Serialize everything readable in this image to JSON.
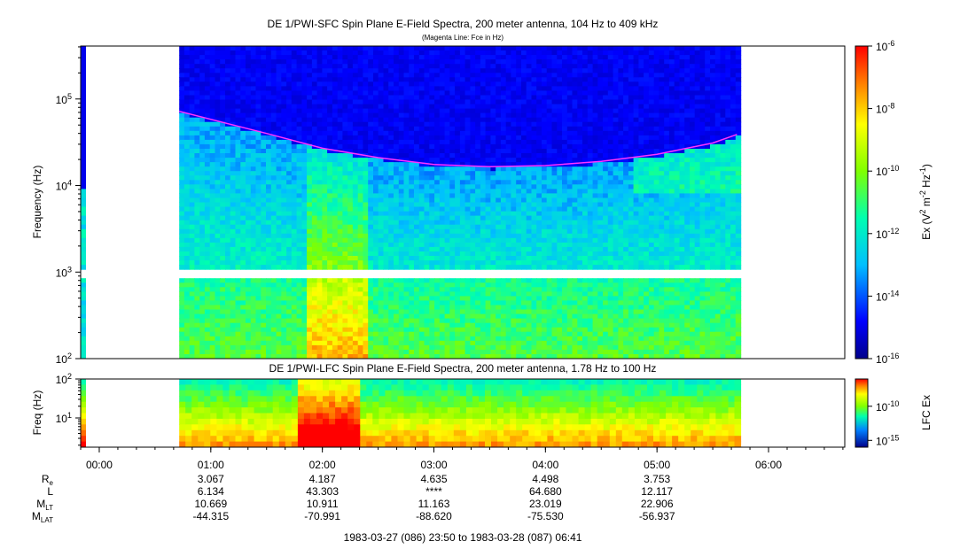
{
  "chart_data": [
    {
      "type": "heatmap",
      "title": "DE 1/PWI-SFC  Spin Plane E-Field Spectra, 200 meter antenna, 104 Hz to 409 kHz",
      "subtitle": "(Magenta Line: Fce in Hz)",
      "ylabel": "Frequency (Hz)",
      "y_scale": "log",
      "ylim": [
        100,
        409000
      ],
      "y_ticks": [
        {
          "value": 100,
          "base": "10",
          "exp": "2"
        },
        {
          "value": 1000,
          "base": "10",
          "exp": "3"
        },
        {
          "value": 10000,
          "base": "10",
          "exp": "4"
        },
        {
          "value": 100000,
          "base": "10",
          "exp": "5"
        }
      ],
      "colorbar": {
        "label_parts": [
          "Ex (V",
          "2",
          " m",
          "-2",
          " Hz",
          "-1",
          ")"
        ],
        "scale": "log",
        "range": [
          1e-16,
          1e-06
        ],
        "ticks": [
          {
            "value": 1e-06,
            "base": "10",
            "exp": "-6"
          },
          {
            "value": 1e-08,
            "base": "10",
            "exp": "-8"
          },
          {
            "value": 1e-10,
            "base": "10",
            "exp": "-10"
          },
          {
            "value": 1e-12,
            "base": "10",
            "exp": "-12"
          },
          {
            "value": 1e-14,
            "base": "10",
            "exp": "-14"
          },
          {
            "value": 1e-16,
            "base": "10",
            "exp": "-16"
          }
        ]
      },
      "data_time_range": [
        "00:43",
        "05:45"
      ],
      "fce_line": {
        "color": "#ff33ff",
        "times": [
          "00:43",
          "01:30",
          "02:00",
          "02:30",
          "03:00",
          "03:30",
          "04:00",
          "04:30",
          "05:00",
          "05:30",
          "05:43"
        ],
        "values_hz": [
          72000,
          40000,
          27000,
          21000,
          17500,
          16500,
          17000,
          19000,
          23000,
          31000,
          39000
        ]
      }
    },
    {
      "type": "heatmap",
      "title": "DE 1/PWI-LFC  Spin Plane E-Field Spectra, 200 meter antenna, 1.78 Hz to 100 Hz",
      "ylabel": "Freq (Hz)",
      "y_scale": "log",
      "ylim": [
        1.78,
        100
      ],
      "y_ticks": [
        {
          "value": 10,
          "base": "10",
          "exp": "1"
        },
        {
          "value": 100,
          "base": "10",
          "exp": "2"
        }
      ],
      "colorbar": {
        "label": "LFC Ex",
        "scale": "log",
        "range": [
          1e-16,
          1e-06
        ],
        "ticks": [
          {
            "value": 1e-10,
            "base": "10",
            "exp": "-10"
          },
          {
            "value": 1e-15,
            "base": "10",
            "exp": "-15"
          }
        ]
      },
      "data_time_range": [
        "00:43",
        "05:45"
      ]
    }
  ],
  "time_axis": {
    "start": "23:50",
    "end": "06:41",
    "ticks": [
      "00:00",
      "01:00",
      "02:00",
      "03:00",
      "04:00",
      "05:00",
      "06:00"
    ]
  },
  "ephemeris": {
    "labels": [
      {
        "main": "R",
        "sub": "e"
      },
      {
        "main": "L",
        "sub": ""
      },
      {
        "main": "M",
        "sub": "LT"
      },
      {
        "main": "M",
        "sub": "LAT"
      }
    ],
    "columns": [
      {
        "time": "01:00",
        "values": [
          "3.067",
          "6.134",
          "10.669",
          "-44.315"
        ]
      },
      {
        "time": "02:00",
        "values": [
          "4.187",
          "43.303",
          "10.911",
          "-70.991"
        ]
      },
      {
        "time": "03:00",
        "values": [
          "4.635",
          "****",
          "11.163",
          "-88.620"
        ]
      },
      {
        "time": "04:00",
        "values": [
          "4.498",
          "64.680",
          "23.019",
          "-75.530"
        ]
      },
      {
        "time": "05:00",
        "values": [
          "3.753",
          "12.117",
          "22.906",
          "-56.937"
        ]
      }
    ]
  },
  "footer": "1983-03-27 (086) 23:50 to 1983-03-28 (087) 06:41",
  "colors": {
    "low": "#00008b",
    "mid": "#00ff80",
    "high": "#ff0000",
    "fce": "#ff33ff"
  }
}
